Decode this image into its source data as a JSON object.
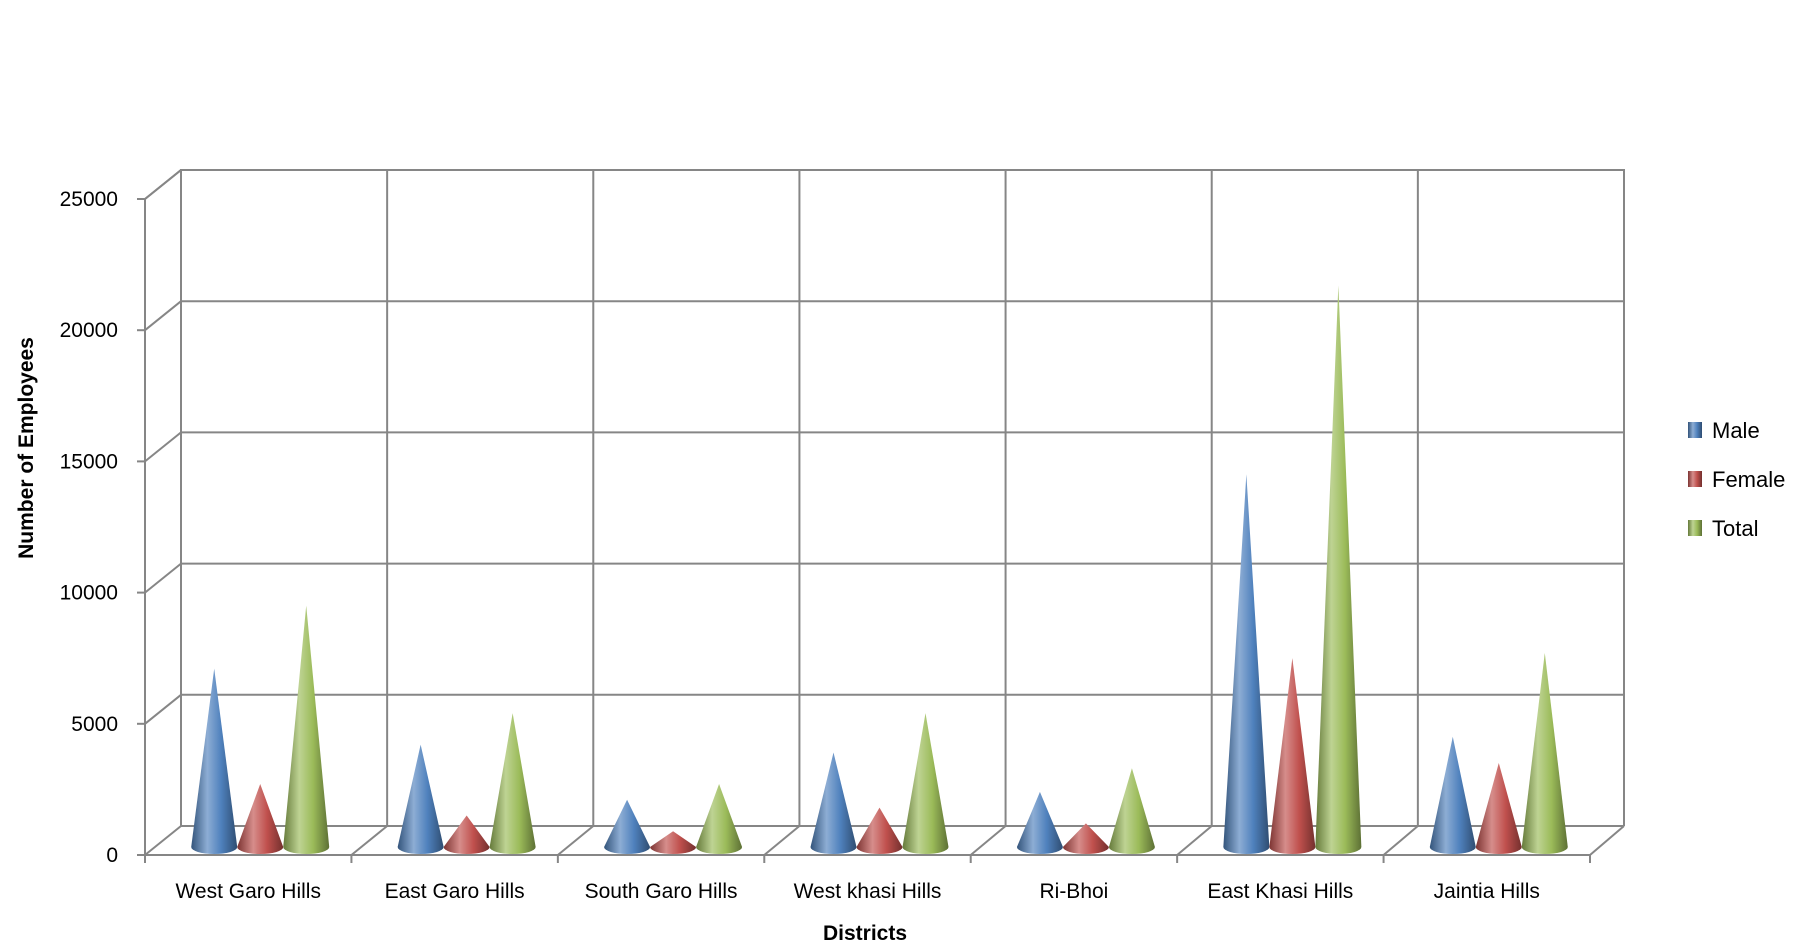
{
  "chart_data": {
    "type": "bar",
    "style": "3d-cone",
    "title": "",
    "xlabel": "Districts",
    "ylabel": "Number of Employees",
    "ylim": [
      0,
      25000
    ],
    "yticks": [
      0,
      5000,
      10000,
      15000,
      20000,
      25000
    ],
    "grid": true,
    "legend_position": "right",
    "categories": [
      "West Garo Hills",
      "East Garo Hills",
      "South Garo Hills",
      "West khasi Hills",
      "Ri-Bhoi",
      "East Khasi Hills",
      "Jaintia Hills"
    ],
    "series": [
      {
        "name": "Male",
        "color": "#4F81BD",
        "values": [
          6800,
          3900,
          1800,
          3600,
          2100,
          14200,
          4200
        ]
      },
      {
        "name": "Female",
        "color": "#C0504D",
        "values": [
          2400,
          1200,
          600,
          1500,
          900,
          7200,
          3200
        ]
      },
      {
        "name": "Total",
        "color": "#9BBB59",
        "values": [
          9200,
          5100,
          2400,
          5100,
          3000,
          21400,
          7400
        ]
      }
    ]
  }
}
